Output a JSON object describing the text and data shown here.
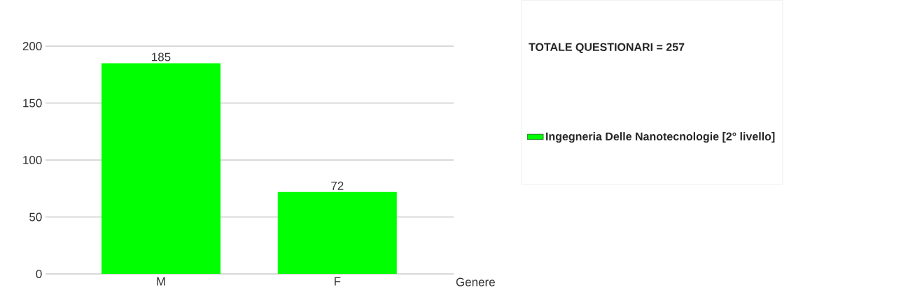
{
  "chart_data": {
    "type": "bar",
    "xlabel": "Genere",
    "legend_title": "TOTALE QUESTIONARI = 257",
    "categories": [
      "M",
      "F"
    ],
    "series": [
      {
        "name": "Ingegneria Delle Nanotecnologie [2° livello]",
        "color": "#00ff00",
        "values": [
          185,
          72
        ]
      }
    ],
    "ylim": [
      0,
      200
    ],
    "yticks": [
      0,
      50,
      100,
      150,
      200
    ],
    "grid": "y",
    "legend": "top right",
    "data_labels": true
  }
}
